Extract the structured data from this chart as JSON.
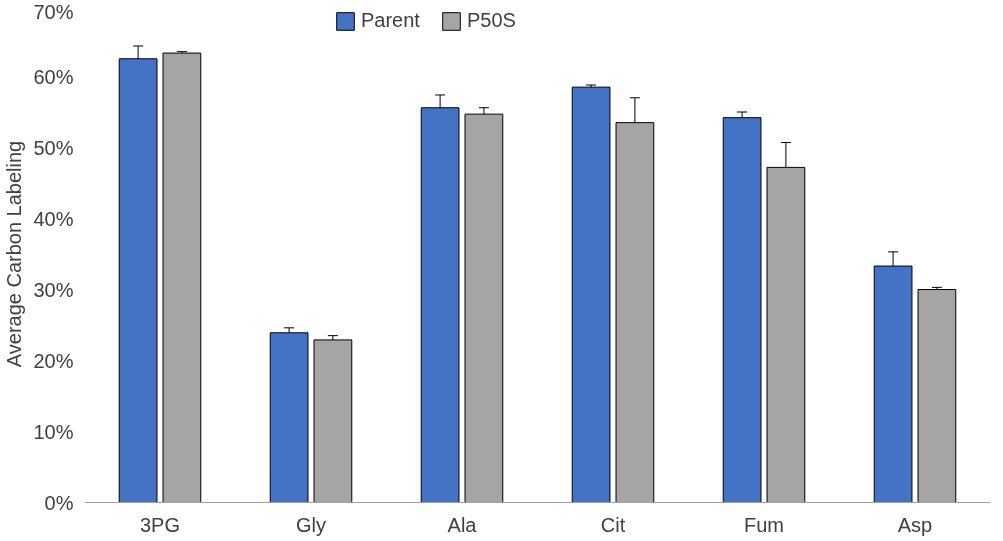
{
  "chart_data": {
    "type": "bar",
    "ylabel": "Average Carbon Labeling",
    "categories": [
      "3PG",
      "Gly",
      "Ala",
      "Cit",
      "Fum",
      "Asp"
    ],
    "series": [
      {
        "name": "Parent",
        "color": "#4472c4",
        "values": [
          62.5,
          23.9,
          55.6,
          58.5,
          54.2,
          33.3
        ],
        "errors": [
          1.8,
          0.7,
          1.8,
          0.3,
          0.8,
          2.0
        ]
      },
      {
        "name": "P50S",
        "color": "#a5a5a5",
        "values": [
          63.3,
          22.9,
          54.7,
          53.5,
          47.2,
          30.0
        ],
        "errors": [
          0.2,
          0.6,
          0.9,
          3.5,
          3.5,
          0.3
        ]
      }
    ],
    "ylim": [
      0,
      70
    ],
    "yticks": [
      {
        "value": 0,
        "label": "0%"
      },
      {
        "value": 10,
        "label": "10%"
      },
      {
        "value": 20,
        "label": "20%"
      },
      {
        "value": 30,
        "label": "30%"
      },
      {
        "value": 40,
        "label": "40%"
      },
      {
        "value": 50,
        "label": "50%"
      },
      {
        "value": 60,
        "label": "60%"
      },
      {
        "value": 70,
        "label": "70%"
      }
    ],
    "grid": false,
    "legend": "top"
  }
}
